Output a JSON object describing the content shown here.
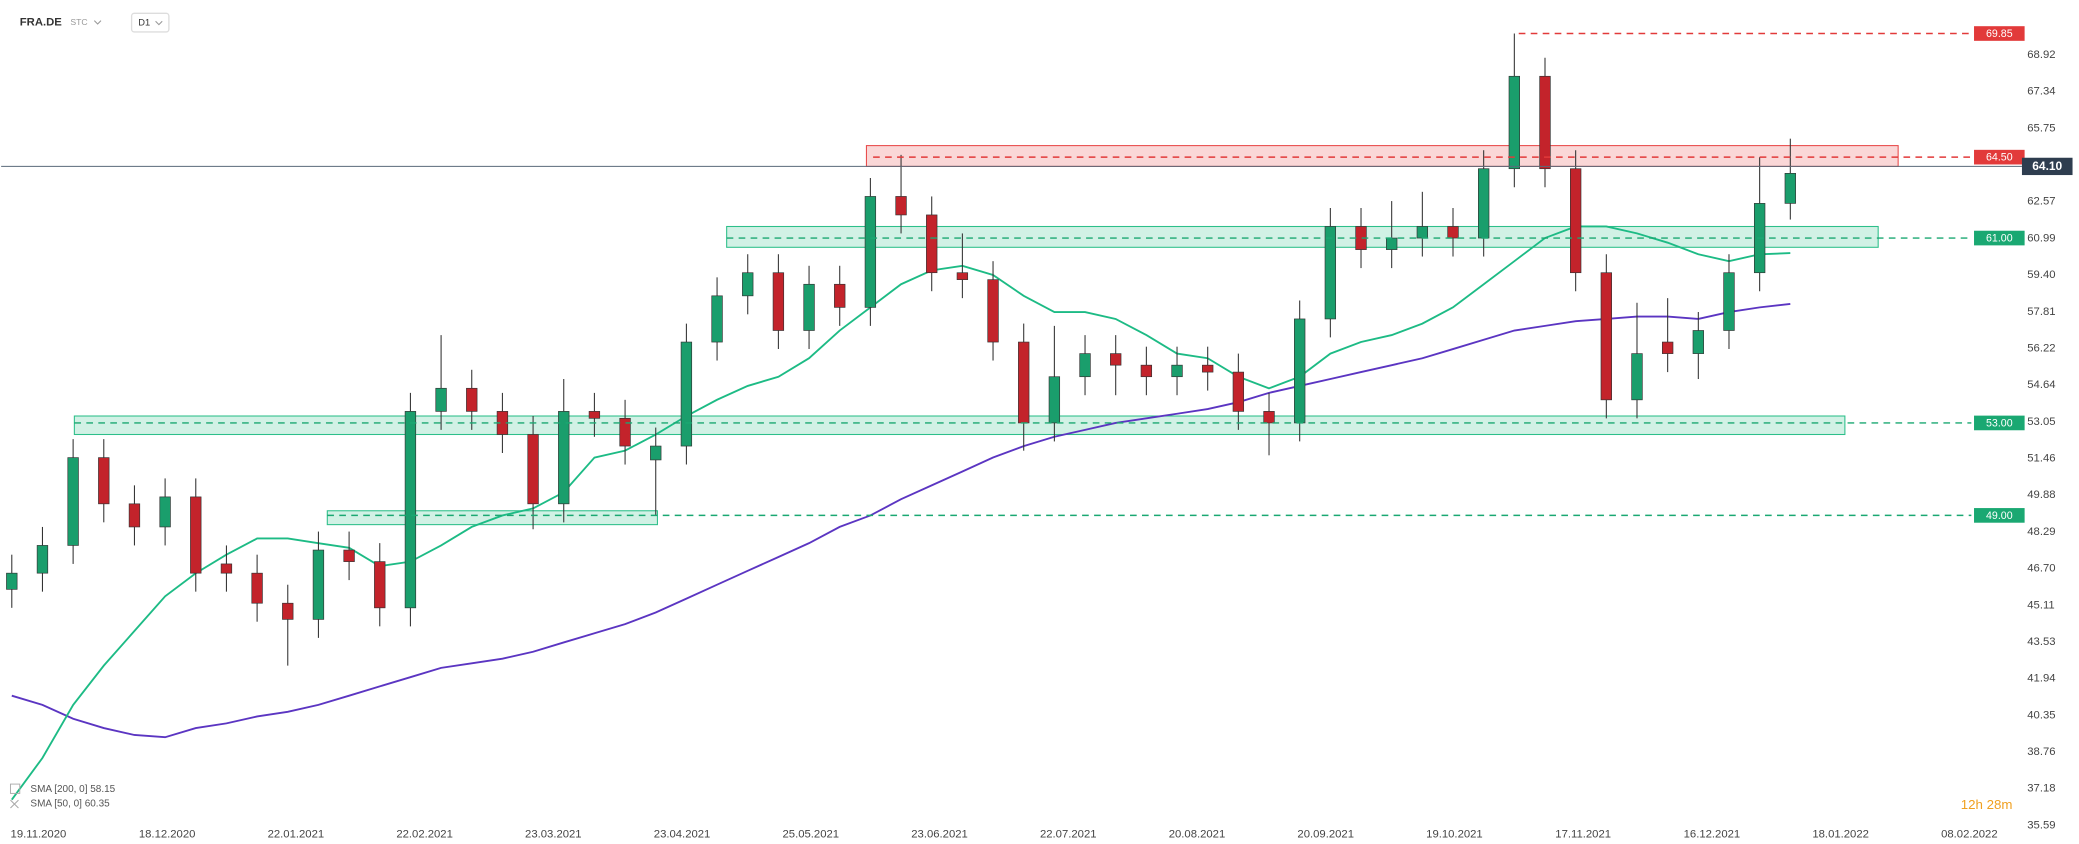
{
  "header": {
    "symbol": "FRA.DE",
    "group": "STC",
    "interval": "D1"
  },
  "chart_data": {
    "type": "candlestick",
    "ylim": [
      35.3,
      71.3
    ],
    "yticks": [
      68.92,
      67.34,
      65.75,
      62.57,
      {
        "value": 60.99,
        "label": "60.99"
      },
      {
        "value": 59.4,
        "label": "59.40"
      },
      57.81,
      56.22,
      54.64,
      53.05,
      51.46,
      49.88,
      48.29,
      {
        "value": 46.7,
        "label": "46.70"
      },
      45.11,
      43.53,
      41.94,
      40.35,
      38.76,
      37.18,
      35.59
    ],
    "xtick_labels": [
      "19.11.2020",
      "18.12.2020",
      "22.01.2021",
      "22.02.2021",
      "23.03.2021",
      "23.04.2021",
      "25.05.2021",
      "23.06.2021",
      "22.07.2021",
      "20.08.2021",
      "20.09.2021",
      "19.10.2021",
      "17.11.2021",
      "16.12.2021",
      "18.01.2022",
      "08.02.2022"
    ],
    "up_color": "#1a9e6c",
    "down_color": "#c3232b",
    "ohlc": [
      [
        45.8,
        47.3,
        45.0,
        46.5
      ],
      [
        46.5,
        48.5,
        45.7,
        47.7
      ],
      [
        47.7,
        52.3,
        46.9,
        51.5
      ],
      [
        51.5,
        52.3,
        48.7,
        49.5
      ],
      [
        49.5,
        50.3,
        47.7,
        48.5
      ],
      [
        48.5,
        50.6,
        47.7,
        49.8
      ],
      [
        49.8,
        50.6,
        45.7,
        46.5
      ],
      [
        46.9,
        47.7,
        45.7,
        46.5
      ],
      [
        46.5,
        47.3,
        44.4,
        45.2
      ],
      [
        45.2,
        46.0,
        42.5,
        44.5
      ],
      [
        44.5,
        48.3,
        43.7,
        47.5
      ],
      [
        47.5,
        48.3,
        46.2,
        47.0
      ],
      [
        47.0,
        47.8,
        44.2,
        45.0
      ],
      [
        45.0,
        54.3,
        44.2,
        53.5
      ],
      [
        53.5,
        56.8,
        52.7,
        54.5
      ],
      [
        54.5,
        55.3,
        52.7,
        53.5
      ],
      [
        53.5,
        54.3,
        51.7,
        52.5
      ],
      [
        52.5,
        53.3,
        48.4,
        49.5
      ],
      [
        49.5,
        54.9,
        48.7,
        53.5
      ],
      [
        53.5,
        54.3,
        52.4,
        53.2
      ],
      [
        53.2,
        54.0,
        51.2,
        52.0
      ],
      [
        51.4,
        52.8,
        49.0,
        52.0
      ],
      [
        52.0,
        57.3,
        51.2,
        56.5
      ],
      [
        56.5,
        59.3,
        55.7,
        58.5
      ],
      [
        58.5,
        60.3,
        57.7,
        59.5
      ],
      [
        59.5,
        60.3,
        56.2,
        57.0
      ],
      [
        57.0,
        59.8,
        56.2,
        59.0
      ],
      [
        59.0,
        59.8,
        57.2,
        58.0
      ],
      [
        58.0,
        63.6,
        57.2,
        62.8
      ],
      [
        62.8,
        64.6,
        61.2,
        62.0
      ],
      [
        62.0,
        62.8,
        58.7,
        59.5
      ],
      [
        59.5,
        61.2,
        58.4,
        59.2
      ],
      [
        59.2,
        60.0,
        55.7,
        56.5
      ],
      [
        56.5,
        57.3,
        51.8,
        53.0
      ],
      [
        53.0,
        57.2,
        52.2,
        55.0
      ],
      [
        55.0,
        56.8,
        54.2,
        56.0
      ],
      [
        56.0,
        56.8,
        54.2,
        55.5
      ],
      [
        55.5,
        56.3,
        54.2,
        55.0
      ],
      [
        55.0,
        56.3,
        54.2,
        55.5
      ],
      [
        55.5,
        56.3,
        54.4,
        55.2
      ],
      [
        55.2,
        56.0,
        52.7,
        53.5
      ],
      [
        53.5,
        54.3,
        51.6,
        53.0
      ],
      [
        53.0,
        58.3,
        52.2,
        57.5
      ],
      [
        57.5,
        62.3,
        56.7,
        61.5
      ],
      [
        61.5,
        62.3,
        59.7,
        60.5
      ],
      [
        60.5,
        62.6,
        59.7,
        61.0
      ],
      [
        61.0,
        63.0,
        60.2,
        61.5
      ],
      [
        61.5,
        62.3,
        60.2,
        61.0
      ],
      [
        61.0,
        64.8,
        60.2,
        64.0
      ],
      [
        64.0,
        69.85,
        63.2,
        68.0
      ],
      [
        68.0,
        68.8,
        63.2,
        64.0
      ],
      [
        64.0,
        64.8,
        58.7,
        59.5
      ],
      [
        59.5,
        60.3,
        53.2,
        54.0
      ],
      [
        54.0,
        58.2,
        53.2,
        56.0
      ],
      [
        56.5,
        58.4,
        55.2,
        56.0
      ],
      [
        56.0,
        57.8,
        54.9,
        57.0
      ],
      [
        57.0,
        60.3,
        56.2,
        59.5
      ],
      [
        59.5,
        64.5,
        58.7,
        62.5
      ],
      [
        62.5,
        65.3,
        61.8,
        63.8
      ]
    ],
    "series": [
      {
        "name": "SMA [200, 0] 58.15",
        "color": "#5b35c2",
        "values": [
          41.2,
          40.8,
          40.2,
          39.8,
          39.5,
          39.4,
          39.8,
          40.0,
          40.3,
          40.5,
          40.8,
          41.2,
          41.6,
          42.0,
          42.4,
          42.6,
          42.8,
          43.1,
          43.5,
          43.9,
          44.3,
          44.8,
          45.4,
          46.0,
          46.6,
          47.2,
          47.8,
          48.5,
          49.0,
          49.7,
          50.3,
          50.9,
          51.5,
          52.0,
          52.4,
          52.7,
          53.0,
          53.2,
          53.4,
          53.6,
          53.9,
          54.3,
          54.6,
          54.9,
          55.2,
          55.5,
          55.8,
          56.2,
          56.6,
          57.0,
          57.2,
          57.4,
          57.5,
          57.6,
          57.6,
          57.5,
          57.8,
          58.0,
          58.15
        ]
      },
      {
        "name": "SMA [50, 0] 60.35",
        "color": "#1dbb85",
        "values": [
          36.7,
          38.5,
          40.8,
          42.5,
          44.0,
          45.5,
          46.5,
          47.3,
          48.0,
          48.0,
          47.8,
          47.6,
          46.8,
          47.0,
          47.7,
          48.5,
          49.0,
          49.3,
          50.0,
          51.5,
          51.8,
          52.5,
          53.3,
          54.0,
          54.6,
          55.0,
          55.8,
          57.0,
          58.0,
          59.0,
          59.6,
          59.8,
          59.4,
          58.5,
          57.8,
          57.8,
          57.5,
          56.8,
          56.0,
          55.8,
          55.0,
          54.5,
          55.0,
          56.0,
          56.5,
          56.8,
          57.3,
          58.0,
          59.0,
          60.0,
          61.0,
          61.5,
          61.5,
          61.2,
          60.8,
          60.3,
          60.0,
          60.3,
          60.35
        ]
      }
    ],
    "zones": [
      {
        "from": 64.1,
        "to": 65.0,
        "color": "#e84a4a"
      },
      {
        "from": 60.6,
        "to": 61.5,
        "color": "#2dbf8a"
      },
      {
        "from": 52.5,
        "to": 53.3,
        "color": "#2dbf8a"
      },
      {
        "from": 48.6,
        "to": 49.2,
        "color": "#2dbf8a"
      }
    ],
    "levels": [
      {
        "value": 69.85,
        "label": "69.85",
        "color": "#e23a3a"
      },
      {
        "value": 64.5,
        "label": "64.50",
        "color": "#e23a3a"
      },
      {
        "value": 61.0,
        "label": "61.00",
        "color": "#1aa872"
      },
      {
        "value": 53.0,
        "label": "53.00",
        "color": "#1aa872"
      },
      {
        "value": 49.0,
        "label": "49.00",
        "color": "#1aa872"
      }
    ],
    "current_price": {
      "value": 64.1,
      "label": "64.10",
      "color": "#2e3d4f"
    },
    "countdown": "12h 28m"
  }
}
